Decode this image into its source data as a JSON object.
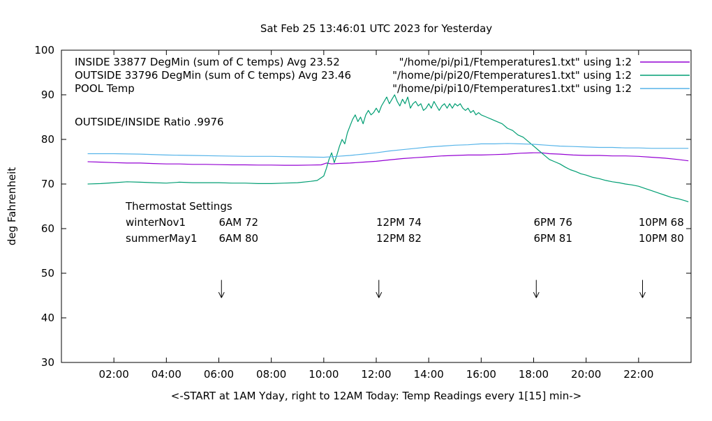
{
  "chart_data": {
    "type": "line",
    "title": "Sat Feb 25 13:46:01 UTC 2023 for Yesterday",
    "xlabel": "<-START at 1AM Yday, right to 12AM Today:  Temp Readings every 1[15] min->",
    "ylabel": "deg Fahrenheit",
    "xlim": [
      0,
      24
    ],
    "ylim": [
      30,
      100
    ],
    "grid": false,
    "x_ticks": [
      {
        "h": 2,
        "label": "02:00"
      },
      {
        "h": 4,
        "label": "04:00"
      },
      {
        "h": 6,
        "label": "06:00"
      },
      {
        "h": 8,
        "label": "08:00"
      },
      {
        "h": 10,
        "label": "10:00"
      },
      {
        "h": 12,
        "label": "12:00"
      },
      {
        "h": 14,
        "label": "14:00"
      },
      {
        "h": 16,
        "label": "16:00"
      },
      {
        "h": 18,
        "label": "18:00"
      },
      {
        "h": 20,
        "label": "20:00"
      },
      {
        "h": 22,
        "label": "22:00"
      }
    ],
    "y_ticks": [
      30,
      40,
      50,
      60,
      70,
      80,
      90,
      100
    ],
    "legend": [
      {
        "text": "INSIDE 33877 DegMin (sum of C temps) Avg 23.52",
        "file": "\"/home/pi/pi1/Ftemperatures1.txt\" using 1:2",
        "color": "#9400d3"
      },
      {
        "text": "OUTSIDE 33796 DegMin (sum of C temps) Avg 23.46",
        "file": "\"/home/pi/pi20/Ftemperatures1.txt\" using 1:2",
        "color": "#009e73"
      },
      {
        "text": "POOL Temp",
        "file": "\"/home/pi/pi10/Ftemperatures1.txt\" using 1:2",
        "color": "#56b4e9"
      }
    ],
    "annotations": {
      "ratio": "OUTSIDE/INSIDE Ratio .9976",
      "thermostat_title": "Thermostat Settings",
      "thermostat_rows": [
        {
          "label": "winterNov1",
          "values": [
            "6AM 72",
            "12PM 74",
            "6PM 76",
            "10PM 68"
          ]
        },
        {
          "label": "summerMay1",
          "values": [
            "6AM 80",
            "12PM 82",
            "6PM 81",
            "10PM 80"
          ]
        }
      ],
      "thermostat_col_hours": [
        6,
        12,
        18,
        22
      ],
      "arrow_hours": [
        6.1,
        12.1,
        18.1,
        22.15
      ]
    },
    "series": [
      {
        "name": "INSIDE",
        "color": "#9400d3",
        "points": [
          [
            1,
            75.0
          ],
          [
            1.5,
            74.9
          ],
          [
            2,
            74.8
          ],
          [
            2.5,
            74.7
          ],
          [
            3,
            74.7
          ],
          [
            3.5,
            74.6
          ],
          [
            4,
            74.5
          ],
          [
            4.5,
            74.5
          ],
          [
            5,
            74.4
          ],
          [
            5.5,
            74.4
          ],
          [
            6,
            74.35
          ],
          [
            6.5,
            74.3
          ],
          [
            7,
            74.3
          ],
          [
            7.5,
            74.25
          ],
          [
            8,
            74.25
          ],
          [
            8.5,
            74.2
          ],
          [
            9,
            74.2
          ],
          [
            9.5,
            74.25
          ],
          [
            9.9,
            74.3
          ],
          [
            10.1,
            74.7
          ],
          [
            10.3,
            74.5
          ],
          [
            10.5,
            74.6
          ],
          [
            11,
            74.7
          ],
          [
            11.5,
            74.9
          ],
          [
            12,
            75.1
          ],
          [
            12.5,
            75.4
          ],
          [
            13,
            75.7
          ],
          [
            13.5,
            75.9
          ],
          [
            14,
            76.1
          ],
          [
            14.5,
            76.3
          ],
          [
            15,
            76.4
          ],
          [
            15.5,
            76.5
          ],
          [
            16,
            76.5
          ],
          [
            16.5,
            76.6
          ],
          [
            17,
            76.7
          ],
          [
            17.5,
            76.9
          ],
          [
            18,
            77.0
          ],
          [
            18.3,
            77.0
          ],
          [
            18.6,
            76.8
          ],
          [
            19,
            76.7
          ],
          [
            19.5,
            76.5
          ],
          [
            20,
            76.4
          ],
          [
            20.5,
            76.4
          ],
          [
            21,
            76.3
          ],
          [
            21.5,
            76.3
          ],
          [
            22,
            76.2
          ],
          [
            22.5,
            76.0
          ],
          [
            23,
            75.8
          ],
          [
            23.5,
            75.5
          ],
          [
            23.9,
            75.2
          ]
        ]
      },
      {
        "name": "OUTSIDE",
        "color": "#009e73",
        "points": [
          [
            1,
            70.0
          ],
          [
            1.5,
            70.1
          ],
          [
            2,
            70.3
          ],
          [
            2.5,
            70.5
          ],
          [
            3,
            70.4
          ],
          [
            3.5,
            70.3
          ],
          [
            4,
            70.2
          ],
          [
            4.5,
            70.4
          ],
          [
            5,
            70.3
          ],
          [
            5.5,
            70.3
          ],
          [
            6,
            70.3
          ],
          [
            6.5,
            70.2
          ],
          [
            7,
            70.2
          ],
          [
            7.5,
            70.1
          ],
          [
            8,
            70.1
          ],
          [
            8.5,
            70.2
          ],
          [
            9,
            70.3
          ],
          [
            9.5,
            70.6
          ],
          [
            9.75,
            70.8
          ],
          [
            10,
            71.8
          ],
          [
            10.1,
            73.5
          ],
          [
            10.2,
            75.5
          ],
          [
            10.3,
            77.0
          ],
          [
            10.4,
            74.8
          ],
          [
            10.5,
            76.5
          ],
          [
            10.6,
            78.5
          ],
          [
            10.7,
            80.0
          ],
          [
            10.8,
            79.0
          ],
          [
            10.9,
            81.5
          ],
          [
            11,
            83.0
          ],
          [
            11.1,
            84.5
          ],
          [
            11.2,
            85.5
          ],
          [
            11.3,
            84.0
          ],
          [
            11.4,
            85.0
          ],
          [
            11.5,
            83.5
          ],
          [
            11.6,
            85.5
          ],
          [
            11.7,
            86.5
          ],
          [
            11.8,
            85.5
          ],
          [
            11.9,
            86.0
          ],
          [
            12,
            87.0
          ],
          [
            12.1,
            86.0
          ],
          [
            12.2,
            87.5
          ],
          [
            12.3,
            88.5
          ],
          [
            12.4,
            89.5
          ],
          [
            12.5,
            88.0
          ],
          [
            12.6,
            89.0
          ],
          [
            12.7,
            90.0
          ],
          [
            12.8,
            88.5
          ],
          [
            12.9,
            87.5
          ],
          [
            13,
            89.0
          ],
          [
            13.1,
            88.0
          ],
          [
            13.2,
            89.5
          ],
          [
            13.3,
            87.0
          ],
          [
            13.4,
            88.0
          ],
          [
            13.5,
            88.5
          ],
          [
            13.6,
            87.5
          ],
          [
            13.7,
            88.0
          ],
          [
            13.8,
            86.5
          ],
          [
            13.9,
            87.0
          ],
          [
            14,
            88.0
          ],
          [
            14.1,
            87.0
          ],
          [
            14.2,
            88.5
          ],
          [
            14.3,
            87.5
          ],
          [
            14.4,
            86.5
          ],
          [
            14.5,
            87.5
          ],
          [
            14.6,
            88.0
          ],
          [
            14.7,
            87.0
          ],
          [
            14.8,
            88.0
          ],
          [
            14.9,
            87.0
          ],
          [
            15,
            88.0
          ],
          [
            15.1,
            87.5
          ],
          [
            15.2,
            88.0
          ],
          [
            15.3,
            87.0
          ],
          [
            15.4,
            86.5
          ],
          [
            15.5,
            87.0
          ],
          [
            15.6,
            86.0
          ],
          [
            15.7,
            86.5
          ],
          [
            15.8,
            85.5
          ],
          [
            15.9,
            86.0
          ],
          [
            16,
            85.5
          ],
          [
            16.2,
            85.0
          ],
          [
            16.4,
            84.5
          ],
          [
            16.6,
            84.0
          ],
          [
            16.8,
            83.5
          ],
          [
            17,
            82.5
          ],
          [
            17.2,
            82.0
          ],
          [
            17.4,
            81.0
          ],
          [
            17.6,
            80.5
          ],
          [
            17.8,
            79.5
          ],
          [
            18,
            78.5
          ],
          [
            18.2,
            77.5
          ],
          [
            18.4,
            76.5
          ],
          [
            18.6,
            75.5
          ],
          [
            18.8,
            75.0
          ],
          [
            19,
            74.5
          ],
          [
            19.2,
            73.8
          ],
          [
            19.4,
            73.2
          ],
          [
            19.6,
            72.8
          ],
          [
            19.8,
            72.3
          ],
          [
            20,
            72.0
          ],
          [
            20.25,
            71.5
          ],
          [
            20.5,
            71.2
          ],
          [
            20.75,
            70.8
          ],
          [
            21,
            70.5
          ],
          [
            21.25,
            70.3
          ],
          [
            21.5,
            70.0
          ],
          [
            21.75,
            69.8
          ],
          [
            22,
            69.5
          ],
          [
            22.25,
            69.0
          ],
          [
            22.5,
            68.5
          ],
          [
            22.75,
            68.0
          ],
          [
            23,
            67.5
          ],
          [
            23.25,
            67.0
          ],
          [
            23.5,
            66.7
          ],
          [
            23.75,
            66.3
          ],
          [
            23.9,
            66.0
          ]
        ]
      },
      {
        "name": "POOL",
        "color": "#56b4e9",
        "points": [
          [
            1,
            76.8
          ],
          [
            2,
            76.8
          ],
          [
            3,
            76.7
          ],
          [
            4,
            76.5
          ],
          [
            5,
            76.4
          ],
          [
            6,
            76.3
          ],
          [
            7,
            76.2
          ],
          [
            8,
            76.2
          ],
          [
            9,
            76.1
          ],
          [
            10,
            76.0
          ],
          [
            10.5,
            76.2
          ],
          [
            11,
            76.4
          ],
          [
            11.5,
            76.7
          ],
          [
            12,
            77.0
          ],
          [
            12.5,
            77.4
          ],
          [
            13,
            77.7
          ],
          [
            13.5,
            78.0
          ],
          [
            14,
            78.3
          ],
          [
            14.5,
            78.5
          ],
          [
            15,
            78.7
          ],
          [
            15.5,
            78.8
          ],
          [
            16,
            79.0
          ],
          [
            16.5,
            79.0
          ],
          [
            17,
            79.1
          ],
          [
            17.5,
            79.0
          ],
          [
            18,
            78.9
          ],
          [
            18.5,
            78.7
          ],
          [
            19,
            78.5
          ],
          [
            19.5,
            78.4
          ],
          [
            20,
            78.3
          ],
          [
            20.5,
            78.2
          ],
          [
            21,
            78.2
          ],
          [
            21.5,
            78.1
          ],
          [
            22,
            78.1
          ],
          [
            22.5,
            78.0
          ],
          [
            23,
            78.0
          ],
          [
            23.5,
            78.0
          ],
          [
            23.9,
            78.0
          ]
        ]
      }
    ]
  }
}
